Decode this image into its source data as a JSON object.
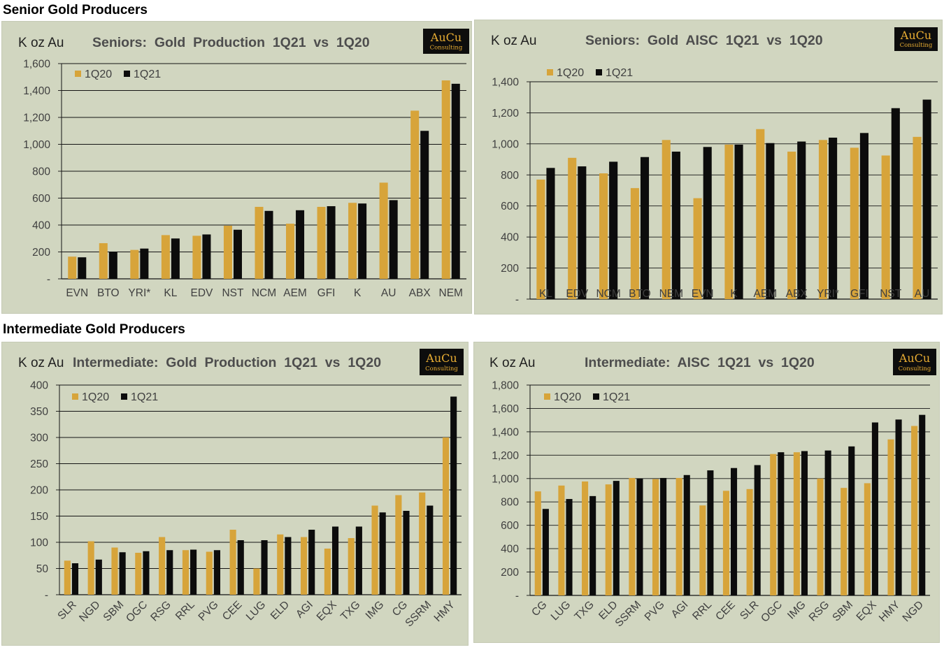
{
  "sections": {
    "senior_title": "Senior Gold Producers",
    "intermediate_title": "Intermediate Gold Producers"
  },
  "logo": {
    "main": "AuCu",
    "sub": "Consulting"
  },
  "colors": {
    "q20": "#d7a43a",
    "q21": "#0c0c0c",
    "panel_bg": "#d1d6c0",
    "logo_bg": "#0d0d0d",
    "logo_text": "#e8ad33"
  },
  "chart_data": [
    {
      "id": "senior-production",
      "type": "bar",
      "unit_label": "K oz Au",
      "title": "Seniors:  Gold  Production  1Q21  vs  1Q20",
      "categories": [
        "EVN",
        "BTO",
        "YRI*",
        "KL",
        "EDV",
        "NST",
        "NCM",
        "AEM",
        "GFI",
        "K",
        "AU",
        "ABX",
        "NEM"
      ],
      "series": [
        {
          "name": "1Q20",
          "values": [
            165,
            265,
            215,
            325,
            320,
            395,
            535,
            410,
            535,
            565,
            715,
            1250,
            1475
          ]
        },
        {
          "name": "1Q21",
          "values": [
            160,
            200,
            225,
            300,
            330,
            365,
            505,
            510,
            540,
            560,
            585,
            1100,
            1450
          ]
        }
      ],
      "ylim": [
        0,
        1600
      ],
      "yticks": [
        0,
        200,
        400,
        600,
        800,
        1000,
        1200,
        1400,
        1600
      ],
      "ytick_labels": [
        "-",
        "200",
        "400",
        "600",
        "800",
        "1,000",
        "1,200",
        "1,400",
        "1,600"
      ],
      "grid": true,
      "legend": "top-left",
      "rotate_labels": false
    },
    {
      "id": "senior-aisc",
      "type": "bar",
      "unit_label": "K oz Au",
      "title": "Seniors:  Gold  AISC  1Q21  vs  1Q20",
      "categories": [
        "KL",
        "EDV",
        "NCM",
        "BTO",
        "NEM",
        "EVN",
        "K",
        "AEM",
        "ABX",
        "YRI*",
        "GFI",
        "NST",
        "AU"
      ],
      "series": [
        {
          "name": "1Q20",
          "values": [
            770,
            910,
            810,
            715,
            1025,
            650,
            995,
            1095,
            950,
            1025,
            975,
            925,
            1045
          ]
        },
        {
          "name": "1Q21",
          "values": [
            845,
            855,
            885,
            915,
            950,
            980,
            995,
            1005,
            1015,
            1040,
            1070,
            1230,
            1285
          ]
        }
      ],
      "ylim": [
        0,
        1400
      ],
      "yticks": [
        0,
        200,
        400,
        600,
        800,
        1000,
        1200,
        1400
      ],
      "ytick_labels": [
        "-",
        "200",
        "400",
        "600",
        "800",
        "1,000",
        "1,200",
        "1,400"
      ],
      "grid": true,
      "legend": "top-left",
      "rotate_labels": false
    },
    {
      "id": "intermediate-production",
      "type": "bar",
      "unit_label": "K oz Au",
      "title": "Intermediate:  Gold  Production  1Q21  vs  1Q20",
      "categories": [
        "SLR",
        "NGD",
        "SBM",
        "OGC",
        "RSG",
        "RRL",
        "PVG",
        "CEE",
        "LUG",
        "ELD",
        "AGI",
        "EQX",
        "TXG",
        "IMG",
        "CG",
        "SSRM",
        "HMY"
      ],
      "series": [
        {
          "name": "1Q20",
          "values": [
            65,
            102,
            90,
            80,
            110,
            85,
            82,
            124,
            50,
            115,
            110,
            88,
            108,
            170,
            190,
            195,
            300
          ]
        },
        {
          "name": "1Q21",
          "values": [
            60,
            67,
            81,
            83,
            85,
            86,
            85,
            104,
            104,
            110,
            124,
            130,
            130,
            157,
            160,
            170,
            378
          ]
        }
      ],
      "ylim": [
        0,
        400
      ],
      "yticks": [
        0,
        50,
        100,
        150,
        200,
        250,
        300,
        350,
        400
      ],
      "ytick_labels": [
        "-",
        "50",
        "100",
        "150",
        "200",
        "250",
        "300",
        "350",
        "400"
      ],
      "grid": true,
      "legend": "top-left",
      "rotate_labels": true
    },
    {
      "id": "intermediate-aisc",
      "type": "bar",
      "unit_label": "K oz Au",
      "title": "Intermediate:  AISC  1Q21  vs  1Q20",
      "categories": [
        "CG",
        "LUG",
        "TXG",
        "ELD",
        "SSRM",
        "PVG",
        "AGI",
        "RRL",
        "CEE",
        "SLR",
        "OGC",
        "IMG",
        "RSG",
        "SBM",
        "EQX",
        "HMY",
        "NGD"
      ],
      "series": [
        {
          "name": "1Q20",
          "values": [
            890,
            940,
            975,
            950,
            1005,
            995,
            1005,
            770,
            895,
            910,
            1210,
            1225,
            1000,
            920,
            960,
            1335,
            1450
          ]
        },
        {
          "name": "1Q21",
          "values": [
            740,
            825,
            850,
            980,
            1000,
            1005,
            1030,
            1070,
            1090,
            1115,
            1225,
            1235,
            1240,
            1275,
            1480,
            1505,
            1545
          ]
        }
      ],
      "ylim": [
        0,
        1800
      ],
      "yticks": [
        0,
        200,
        400,
        600,
        800,
        1000,
        1200,
        1400,
        1600,
        1800
      ],
      "ytick_labels": [
        "-",
        "200",
        "400",
        "600",
        "800",
        "1,000",
        "1,200",
        "1,400",
        "1,600",
        "1,800"
      ],
      "grid": true,
      "legend": "top-left",
      "rotate_labels": true
    }
  ]
}
